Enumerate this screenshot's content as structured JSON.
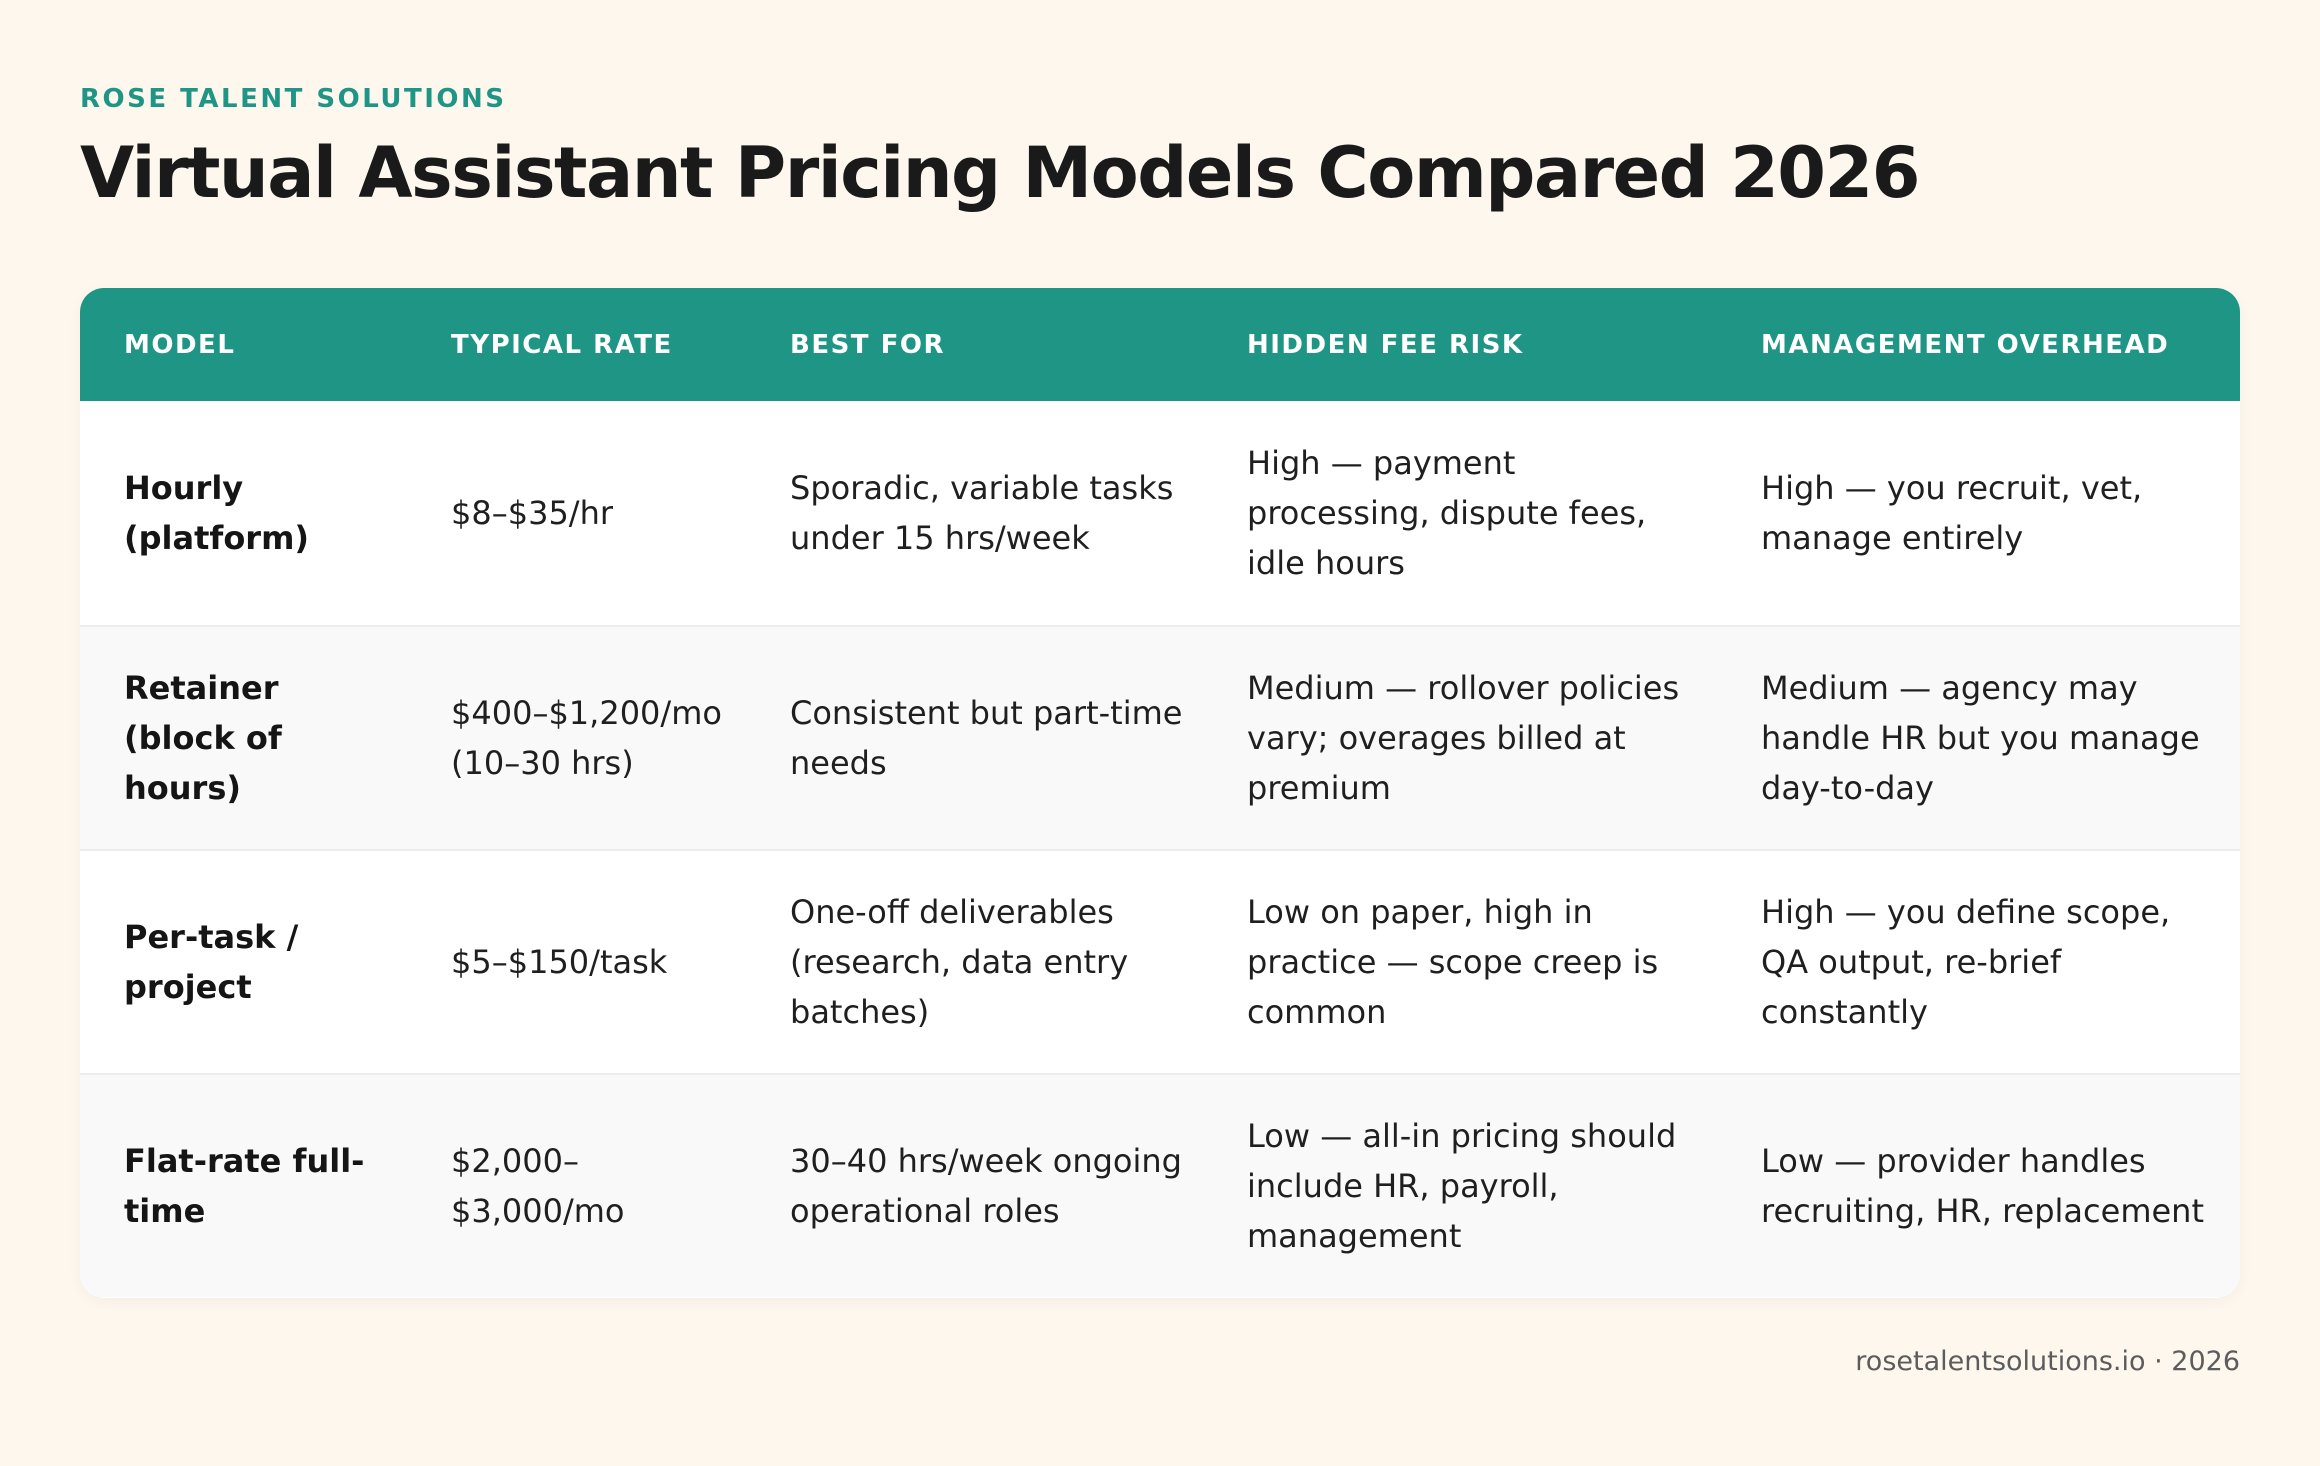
{
  "brand": "ROSE TALENT SOLUTIONS",
  "title": "Virtual Assistant Pricing Models Compared 2026",
  "table": {
    "headers": [
      "MODEL",
      "TYPICAL RATE",
      "BEST FOR",
      "HIDDEN FEE RISK",
      "MANAGEMENT OVERHEAD"
    ],
    "rows": [
      {
        "model": "Hourly (platform)",
        "rate": "$8–$35/hr",
        "best_for": "Sporadic, variable tasks under 15 hrs/week",
        "hidden_fee_risk": "High — payment processing, dispute fees, idle hours",
        "management_overhead": "High — you recruit, vet, manage entirely"
      },
      {
        "model": "Retainer (block of hours)",
        "rate": "$400–$1,200/mo (10–30 hrs)",
        "best_for": "Consistent but part-time needs",
        "hidden_fee_risk": "Medium — rollover policies vary; overages billed at premium",
        "management_overhead": "Medium — agency may handle HR but you manage day-to-day"
      },
      {
        "model": "Per-task / project",
        "rate": "$5–$150/task",
        "best_for": "One-off deliverables (research, data entry batches)",
        "hidden_fee_risk": "Low on paper, high in practice — scope creep is common",
        "management_overhead": "High — you define scope, QA output, re-brief constantly"
      },
      {
        "model": "Flat-rate full-time",
        "rate": "$2,000–$3,000/mo",
        "best_for": "30–40 hrs/week ongoing operational roles",
        "hidden_fee_risk": "Low — all-in pricing should include HR, payroll, management",
        "management_overhead": "Low — provider handles recruiting, HR, replacement"
      }
    ]
  },
  "footer": "rosetalentsolutions.io · 2026",
  "colors": {
    "accent": "#1f9586",
    "background": "#fdf7ee"
  }
}
